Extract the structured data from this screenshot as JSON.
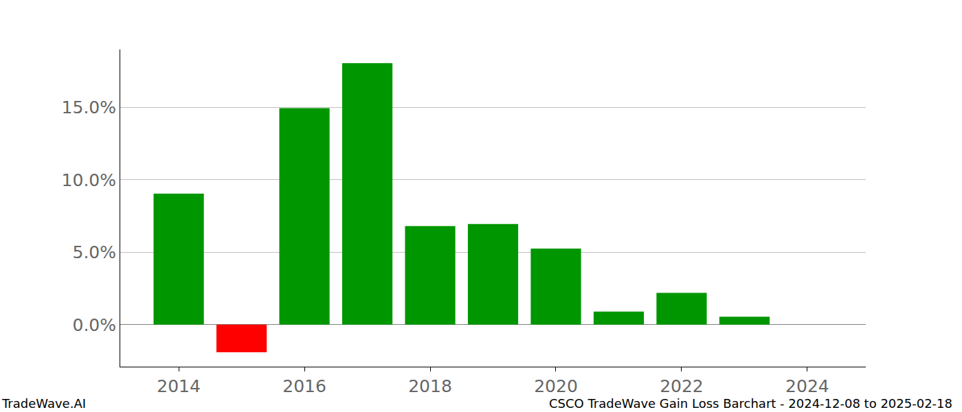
{
  "chart_data": {
    "type": "bar",
    "x": [
      2014,
      2015,
      2016,
      2017,
      2018,
      2019,
      2020,
      2021,
      2022,
      2023
    ],
    "values": [
      9.05,
      -1.9,
      14.95,
      18.05,
      6.8,
      6.95,
      5.25,
      0.9,
      2.2,
      0.55
    ],
    "colors": [
      "#009600",
      "#ff0000",
      "#009600",
      "#009600",
      "#009600",
      "#009600",
      "#009600",
      "#009600",
      "#009600",
      "#009600"
    ],
    "xlim": [
      2013.07,
      2024.93
    ],
    "xticks": [
      2014,
      2016,
      2018,
      2020,
      2022,
      2024
    ],
    "ylim": [
      -2.9,
      19.0
    ],
    "yticks": [
      {
        "value": 0,
        "label": "0.0%"
      },
      {
        "value": 5,
        "label": "5.0%"
      },
      {
        "value": 10,
        "label": "10.0%"
      },
      {
        "value": 15,
        "label": "15.0%"
      }
    ],
    "grid": true,
    "annotations": [
      "TradeWave.AI",
      "CSCO TradeWave Gain Loss Barchart - 2024-12-08 to 2025-02-18"
    ]
  }
}
